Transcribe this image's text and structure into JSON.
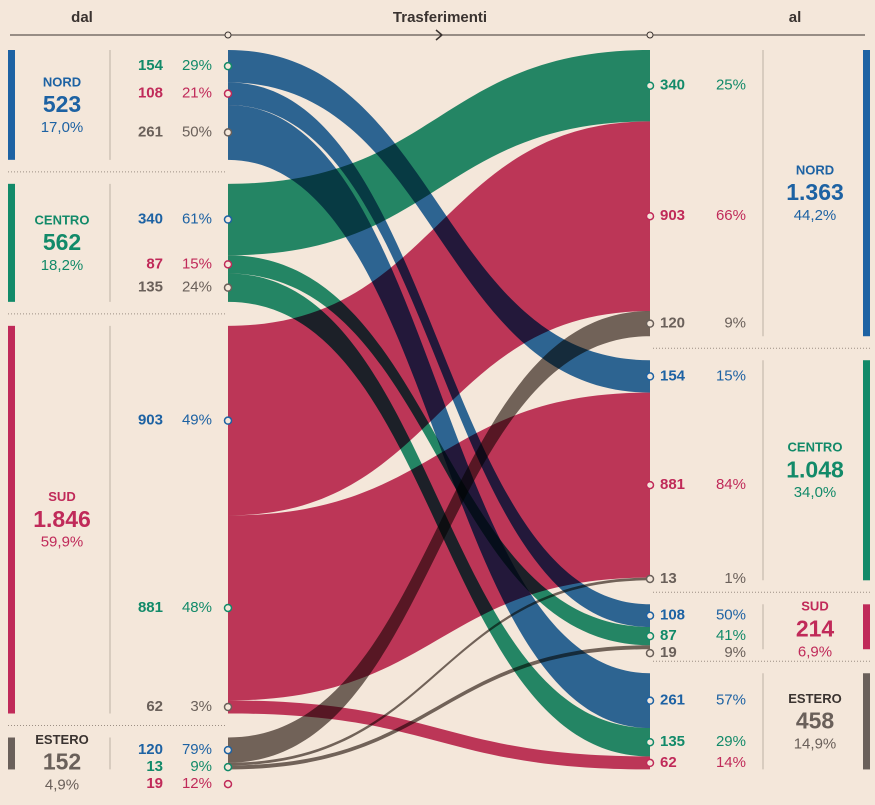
{
  "chart_data": {
    "type": "sankey",
    "header": {
      "left": "dal",
      "center": "Trasferimenti",
      "right": "al"
    },
    "sources": [
      {
        "name": "NORD",
        "color": "#1d62a3",
        "total": 523,
        "total_label": "523",
        "share": 17.0,
        "share_label": "17,0%",
        "flows": [
          {
            "value": 154,
            "share": 29,
            "share_label": "29%",
            "target_share": 15,
            "target_share_label": "15%"
          },
          {
            "value": 108,
            "share": 21,
            "share_label": "21%",
            "target_share": 50,
            "target_share_label": "50%"
          },
          {
            "value": 261,
            "share": 50,
            "share_label": "50%",
            "target_share": 57,
            "target_share_label": "57%"
          }
        ]
      },
      {
        "name": "CENTRO",
        "color": "#128a69",
        "total": 562,
        "total_label": "562",
        "share": 18.2,
        "share_label": "18,2%",
        "flows": [
          {
            "value": 340,
            "share": 61,
            "share_label": "61%",
            "target_share": 25,
            "target_share_label": "25%"
          },
          {
            "value": 87,
            "share": 15,
            "share_label": "15%",
            "target_share": 41,
            "target_share_label": "41%"
          },
          {
            "value": 135,
            "share": 24,
            "share_label": "24%",
            "target_share": 29,
            "target_share_label": "29%"
          }
        ]
      },
      {
        "name": "SUD",
        "color": "#c02a59",
        "total": 1846,
        "total_label": "1.846",
        "share": 59.9,
        "share_label": "59,9%",
        "flows": [
          {
            "value": 903,
            "share": 49,
            "share_label": "49%",
            "target_share": 66,
            "target_share_label": "66%"
          },
          {
            "value": 881,
            "share": 48,
            "share_label": "48%",
            "target_share": 84,
            "target_share_label": "84%"
          },
          {
            "value": 62,
            "share": 3,
            "share_label": "3%",
            "target_share": 14,
            "target_share_label": "14%"
          }
        ]
      },
      {
        "name": "ESTERO",
        "color": "#6a605a",
        "total": 152,
        "total_label": "152",
        "share": 4.9,
        "share_label": "4,9%",
        "flows": [
          {
            "value": 120,
            "share": 79,
            "share_label": "79%",
            "target_share": 9,
            "target_share_label": "9%"
          },
          {
            "value": 13,
            "share": 9,
            "share_label": "9%",
            "target_share": 1,
            "target_share_label": "1%"
          },
          {
            "value": 19,
            "share": 12,
            "share_label": "12%",
            "target_share": 9,
            "target_share_label": "9%"
          }
        ]
      }
    ],
    "targets": [
      {
        "name": "NORD",
        "color": "#1d62a3",
        "total": 1363,
        "total_label": "1.363",
        "share": 44.2,
        "share_label": "44,2%"
      },
      {
        "name": "CENTRO",
        "color": "#128a69",
        "total": 1048,
        "total_label": "1.048",
        "share": 34.0,
        "share_label": "34,0%"
      },
      {
        "name": "SUD",
        "color": "#c02a59",
        "total": 214,
        "total_label": "214",
        "share": 6.9,
        "share_label": "6,9%"
      },
      {
        "name": "ESTERO",
        "color": "#6a605a",
        "total": 458,
        "total_label": "458",
        "share": 14.9,
        "share_label": "14,9%"
      }
    ]
  }
}
